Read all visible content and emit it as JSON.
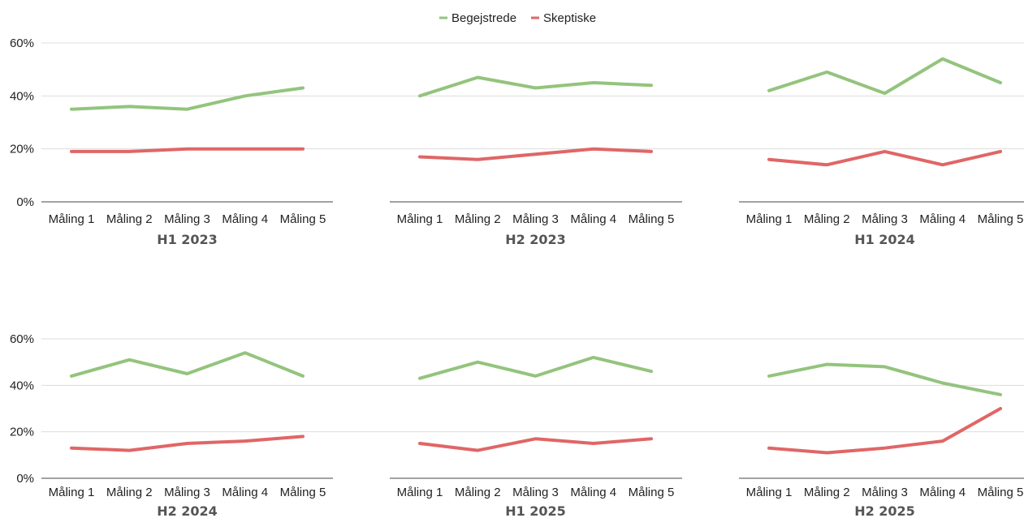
{
  "legend": {
    "placement": "top-center",
    "items": [
      {
        "name": "Begejstrede",
        "color": "#93c47d"
      },
      {
        "name": "Skeptiske",
        "color": "#e06666"
      }
    ]
  },
  "y_ticks": [
    "60%",
    "40%",
    "20%",
    "0%"
  ],
  "chart_data": [
    {
      "type": "line",
      "title": "H1 2023",
      "categories": [
        "Måling 1",
        "Måling 2",
        "Måling 3",
        "Måling 4",
        "Måling 5"
      ],
      "ylim": [
        0,
        60
      ],
      "ylabel_unit": "%",
      "grid": true,
      "series": [
        {
          "name": "Begejstrede",
          "values": [
            35,
            36,
            35,
            40,
            43
          ]
        },
        {
          "name": "Skeptiske",
          "values": [
            19,
            19,
            20,
            20,
            20
          ]
        }
      ]
    },
    {
      "type": "line",
      "title": "H2 2023",
      "categories": [
        "Måling 1",
        "Måling 2",
        "Måling 3",
        "Måling 4",
        "Måling 5"
      ],
      "ylim": [
        0,
        60
      ],
      "ylabel_unit": "%",
      "grid": true,
      "series": [
        {
          "name": "Begejstrede",
          "values": [
            40,
            47,
            43,
            45,
            44
          ]
        },
        {
          "name": "Skeptiske",
          "values": [
            17,
            16,
            18,
            20,
            19
          ]
        }
      ]
    },
    {
      "type": "line",
      "title": "H1 2024",
      "categories": [
        "Måling 1",
        "Måling 2",
        "Måling 3",
        "Måling 4",
        "Måling 5"
      ],
      "ylim": [
        0,
        60
      ],
      "ylabel_unit": "%",
      "grid": true,
      "series": [
        {
          "name": "Begejstrede",
          "values": [
            42,
            49,
            41,
            54,
            45
          ]
        },
        {
          "name": "Skeptiske",
          "values": [
            16,
            14,
            19,
            14,
            19
          ]
        }
      ]
    },
    {
      "type": "line",
      "title": "H2 2024",
      "categories": [
        "Måling 1",
        "Måling 2",
        "Måling 3",
        "Måling 4",
        "Måling 5"
      ],
      "ylim": [
        0,
        60
      ],
      "ylabel_unit": "%",
      "grid": true,
      "series": [
        {
          "name": "Begejstrede",
          "values": [
            44,
            51,
            45,
            54,
            44
          ]
        },
        {
          "name": "Skeptiske",
          "values": [
            13,
            12,
            15,
            16,
            18
          ]
        }
      ]
    },
    {
      "type": "line",
      "title": "H1 2025",
      "categories": [
        "Måling 1",
        "Måling 2",
        "Måling 3",
        "Måling 4",
        "Måling 5"
      ],
      "ylim": [
        0,
        60
      ],
      "ylabel_unit": "%",
      "grid": true,
      "series": [
        {
          "name": "Begejstrede",
          "values": [
            43,
            50,
            44,
            52,
            46
          ]
        },
        {
          "name": "Skeptiske",
          "values": [
            15,
            12,
            17,
            15,
            17
          ]
        }
      ]
    },
    {
      "type": "line",
      "title": "H2 2025",
      "categories": [
        "Måling 1",
        "Måling 2",
        "Måling 3",
        "Måling 4",
        "Måling 5"
      ],
      "ylim": [
        0,
        60
      ],
      "ylabel_unit": "%",
      "grid": true,
      "series": [
        {
          "name": "Begejstrede",
          "values": [
            44,
            49,
            48,
            41,
            36
          ]
        },
        {
          "name": "Skeptiske",
          "values": [
            13,
            11,
            13,
            16,
            30
          ]
        }
      ]
    }
  ]
}
